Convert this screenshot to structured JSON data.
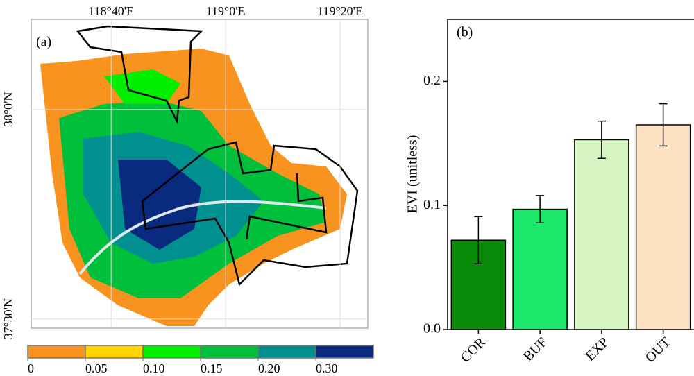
{
  "chart_data": [
    {
      "type": "map",
      "panel_label": "(a)",
      "xlim": [
        118.434,
        119.414
      ],
      "ylim": [
        37.478,
        38.215
      ],
      "xticks": [
        {
          "value": 118.6667,
          "label": "118°40'E"
        },
        {
          "value": 119.0,
          "label": "119°0'E"
        },
        {
          "value": 119.3333,
          "label": "119°20'E"
        }
      ],
      "yticks": [
        {
          "value": 37.5,
          "label": "37°30'N"
        },
        {
          "value": 38.0,
          "label": "38°0'N"
        }
      ],
      "colorbar": {
        "colors": [
          "#f7931e",
          "#ffd400",
          "#00ee00",
          "#00bf3a",
          "#009090",
          "#0a2a80"
        ],
        "ticks": [
          0,
          0.05,
          {
            "value": 0.1,
            "label": "0.10"
          },
          0.15,
          {
            "value": 0.2,
            "label": "0.20"
          },
          {
            "value": 0.3,
            "label": "0.30"
          }
        ]
      }
    },
    {
      "type": "bar",
      "panel_label": "(b)",
      "ylabel": "EVI (unitless)",
      "categories": [
        "COR",
        "BUF",
        "EXP",
        "OUT"
      ],
      "values": [
        0.072,
        0.097,
        0.153,
        0.165
      ],
      "errors": [
        0.019,
        0.011,
        0.015,
        0.017
      ],
      "colors": [
        "#0a8a0a",
        "#1ee86a",
        "#d6f5c2",
        "#fde3c2"
      ],
      "ylim": [
        0,
        0.25
      ],
      "yticks": [
        {
          "value": 0,
          "label": "0.0"
        },
        0.1,
        0.2
      ]
    }
  ]
}
